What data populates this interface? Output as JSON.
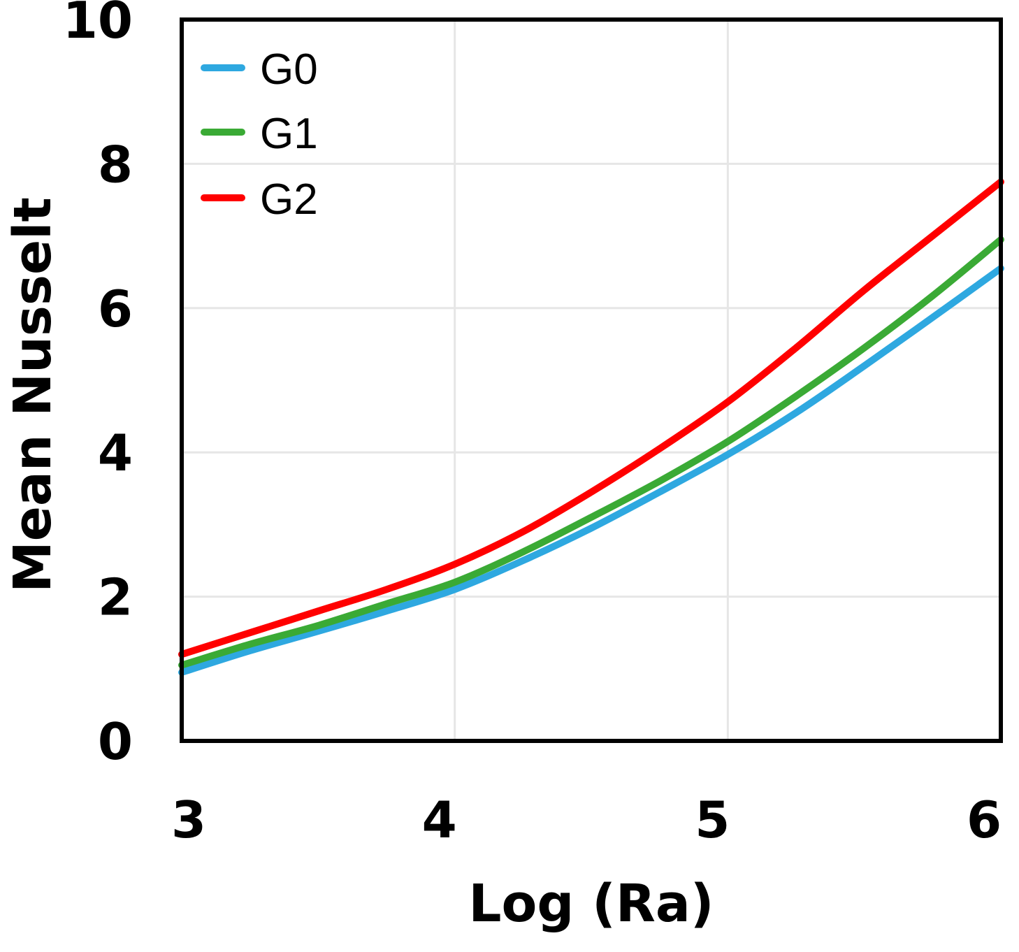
{
  "chart_data": {
    "type": "line",
    "title": "",
    "xlabel": "Log (Ra)",
    "ylabel": "Mean Nusselt",
    "xlim": [
      3,
      6
    ],
    "ylim": [
      0,
      10
    ],
    "xticks": [
      3,
      4,
      5,
      6
    ],
    "yticks": [
      0,
      2,
      4,
      6,
      8,
      10
    ],
    "xtick_labels": [
      "3",
      "4",
      "5",
      "6"
    ],
    "ytick_labels": [
      "0",
      "2",
      "4",
      "6",
      "8",
      "10"
    ],
    "grid": true,
    "legend_position": "top-left",
    "series": [
      {
        "name": "G0",
        "color": "#2ea8e0",
        "x": [
          3.0,
          3.25,
          3.5,
          3.75,
          4.0,
          4.25,
          4.5,
          4.75,
          5.0,
          5.25,
          5.5,
          5.75,
          6.0
        ],
        "y": [
          0.95,
          1.25,
          1.52,
          1.8,
          2.1,
          2.5,
          2.95,
          3.45,
          3.97,
          4.55,
          5.2,
          5.87,
          6.55
        ]
      },
      {
        "name": "G1",
        "color": "#3aaa35",
        "x": [
          3.0,
          3.25,
          3.5,
          3.75,
          4.0,
          4.25,
          4.5,
          4.75,
          5.0,
          5.25,
          5.5,
          5.75,
          6.0
        ],
        "y": [
          1.05,
          1.34,
          1.6,
          1.9,
          2.2,
          2.62,
          3.1,
          3.6,
          4.15,
          4.78,
          5.45,
          6.17,
          6.95
        ]
      },
      {
        "name": "G2",
        "color": "#ff0000",
        "x": [
          3.0,
          3.25,
          3.5,
          3.75,
          4.0,
          4.25,
          4.5,
          4.75,
          5.0,
          5.25,
          5.5,
          5.75,
          6.0
        ],
        "y": [
          1.2,
          1.5,
          1.8,
          2.1,
          2.45,
          2.9,
          3.45,
          4.05,
          4.7,
          5.45,
          6.25,
          7.0,
          7.75
        ]
      }
    ]
  }
}
